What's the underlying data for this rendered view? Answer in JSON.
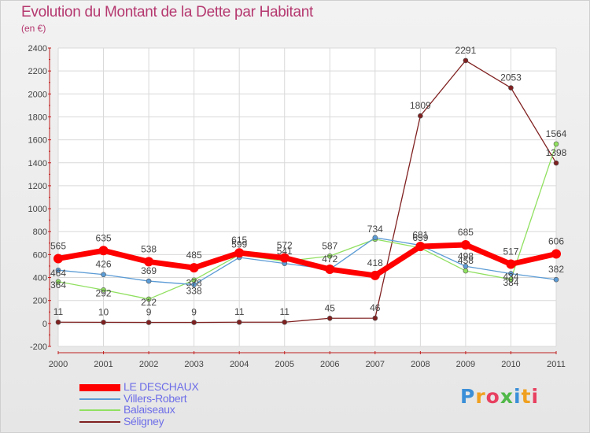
{
  "chart_data": {
    "type": "line",
    "title": "Evolution du Montant de la Dette par Habitant",
    "subtitle": "(en €)",
    "xlabel": "",
    "ylabel": "",
    "x": [
      "2000",
      "2001",
      "2002",
      "2003",
      "2004",
      "2005",
      "2006",
      "2007",
      "2008",
      "2009",
      "2010",
      "2011"
    ],
    "ylim": [
      -200,
      2400
    ],
    "yticks": [
      "-200",
      "0",
      "200",
      "400",
      "600",
      "800",
      "1000",
      "1200",
      "1400",
      "1600",
      "1800",
      "2000",
      "2200",
      "2400"
    ],
    "grid": true,
    "legend": "bottom-left",
    "series": [
      {
        "name": "LE DESCHAUX",
        "color": "#ff0000",
        "values": [
          565,
          635,
          538,
          485,
          615,
          572,
          472,
          418,
          671,
          685,
          517,
          606
        ],
        "labels": [
          "565",
          "635",
          "538",
          "485",
          "615",
          "572",
          "",
          "418",
          "",
          "685",
          "517",
          "606"
        ]
      },
      {
        "name": "Villers-Robert",
        "color": "#5b9bd5",
        "values": [
          464,
          426,
          369,
          338,
          575,
          523,
          472,
          748,
          681,
          498,
          434,
          382
        ],
        "labels": [
          "464",
          "426",
          "369",
          "338",
          "",
          "",
          "472",
          "",
          "681",
          "498",
          "434",
          "382"
        ]
      },
      {
        "name": "Balaiseaux",
        "color": "#90e060",
        "values": [
          364,
          292,
          212,
          378,
          599,
          541,
          587,
          734,
          659,
          458,
          384,
          1564
        ],
        "labels": [
          "364",
          "292",
          "212",
          "378",
          "599",
          "541",
          "587",
          "734",
          "659",
          "458",
          "384",
          "1564"
        ]
      },
      {
        "name": "Séligney",
        "color": "#802020",
        "values": [
          11,
          10,
          9,
          9,
          11,
          11,
          45,
          46,
          1809,
          2291,
          2053,
          1398
        ],
        "labels": [
          "11",
          "10",
          "9",
          "9",
          "11",
          "11",
          "45",
          "46",
          "1809",
          "2291",
          "2053",
          "1398"
        ]
      }
    ]
  },
  "logo": {
    "text": "Proxiti"
  }
}
